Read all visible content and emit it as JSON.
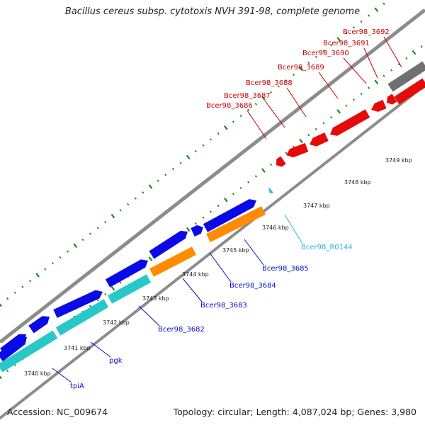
{
  "title": "Bacillus cereus subsp. cytotoxis NVH 391-98, complete genome",
  "footer": {
    "accession": "Accession: NC_009674",
    "summary": "Topology: circular; Length: 4,087,024 bp; Genes: 3,980"
  },
  "colors": {
    "cds_forward": "#0a0ae6",
    "cds_reverse": "#e60a0a",
    "rrna_or_trna": "#29c8c8",
    "orange_feature": "#ff8c00",
    "gray_feature": "#707070",
    "backbone": "#8c8c8c",
    "tick": "#1a8a1a",
    "label_forward": "#0a0acc",
    "label_reverse": "#cc0000",
    "label_rna": "#29b4d8"
  },
  "ruler_labels": [
    "3740 kbp",
    "3741 kbp",
    "3742 kbp",
    "3743 kbp",
    "3744 kbp",
    "3745 kbp",
    "3746 kbp",
    "3747 kbp",
    "3748 kbp",
    "3749 kbp"
  ],
  "gene_labels": {
    "forward": [
      "tpiA",
      "pgk",
      "Bcer98_3682",
      "Bcer98_3683",
      "Bcer98_3684",
      "Bcer98_3685"
    ],
    "rna": [
      "Bcer98_R0144"
    ],
    "reverse": [
      "Bcer98_3686",
      "Bcer98_3687",
      "Bcer98_3688",
      "Bcer98_3689",
      "Bcer98_3690",
      "Bcer98_3691",
      "Bcer98_3692"
    ]
  }
}
